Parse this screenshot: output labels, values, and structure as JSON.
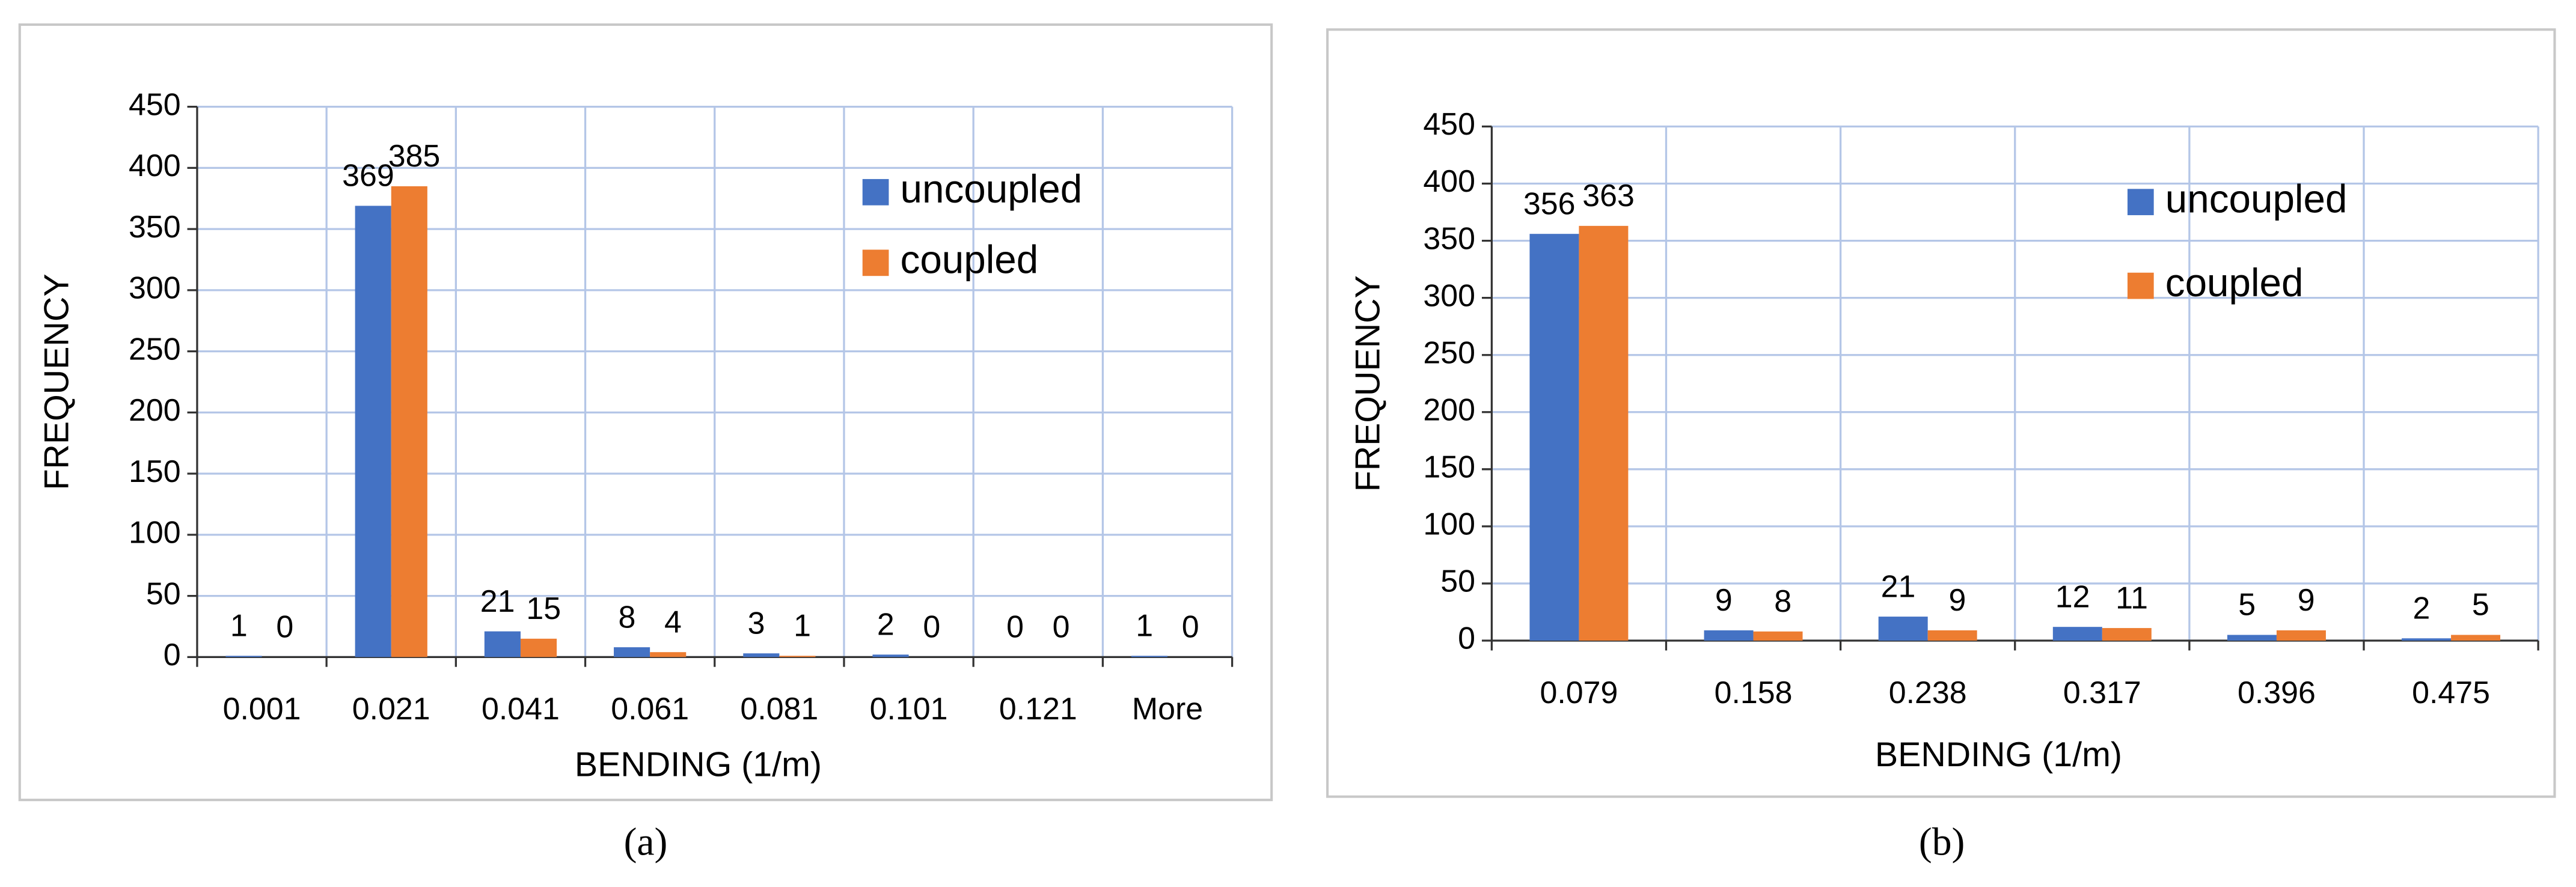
{
  "chart_data": [
    {
      "type": "bar",
      "caption": "(a)",
      "x_label": "BENDING (1/m)",
      "y_label": "FREQUENCY",
      "categories": [
        "0.001",
        "0.021",
        "0.041",
        "0.061",
        "0.081",
        "0.101",
        "0.121",
        "More"
      ],
      "series": [
        {
          "name": "uncoupled",
          "color": "#4472c4",
          "values": [
            1,
            369,
            21,
            8,
            3,
            2,
            0,
            1
          ]
        },
        {
          "name": "coupled",
          "color": "#ed7d31",
          "values": [
            0,
            385,
            15,
            4,
            1,
            0,
            0,
            0
          ]
        }
      ],
      "ylim": [
        0,
        450
      ],
      "yticks": [
        0,
        50,
        100,
        150,
        200,
        250,
        300,
        350,
        400,
        450
      ],
      "grid": true
    },
    {
      "type": "bar",
      "caption": "(b)",
      "x_label": "BENDING (1/m)",
      "y_label": "FREQUENCY",
      "categories": [
        "0.079",
        "0.158",
        "0.238",
        "0.317",
        "0.396",
        "0.475"
      ],
      "series": [
        {
          "name": "uncoupled",
          "color": "#4472c4",
          "values": [
            356,
            9,
            21,
            12,
            5,
            2
          ]
        },
        {
          "name": "coupled",
          "color": "#ed7d31",
          "values": [
            363,
            8,
            9,
            11,
            9,
            5
          ]
        }
      ],
      "ylim": [
        0,
        450
      ],
      "yticks": [
        0,
        50,
        100,
        150,
        200,
        250,
        300,
        350,
        400,
        450
      ],
      "grid": true
    }
  ]
}
